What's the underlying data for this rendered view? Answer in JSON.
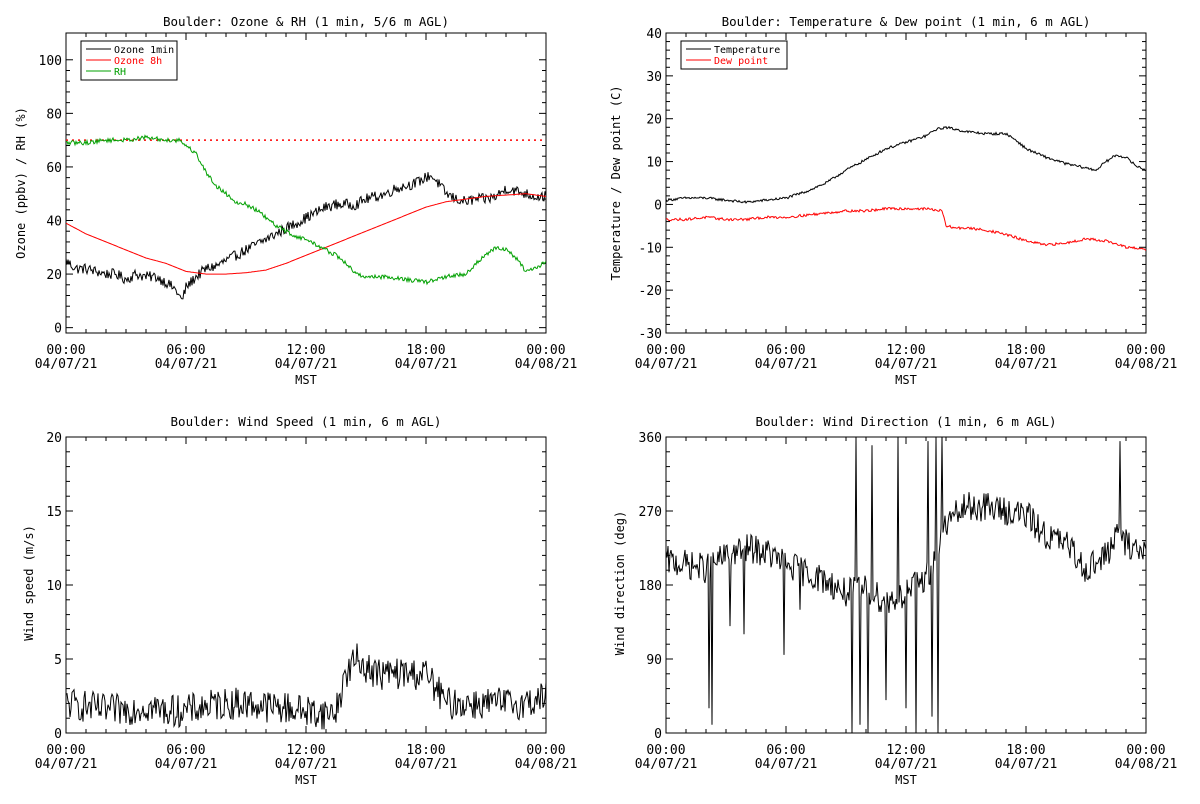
{
  "panels": [
    {
      "title": "Boulder: Ozone & RH (1 min, 5/6 m AGL)",
      "ylabel": "Ozone (ppbv) / RH (%)",
      "xlabel": "MST"
    },
    {
      "title": "Boulder: Temperature & Dew point (1 min, 6 m AGL)",
      "ylabel": "Temperature / Dew point (C)",
      "xlabel": "MST"
    },
    {
      "title": "Boulder: Wind Speed (1 min, 6 m AGL)",
      "ylabel": "Wind speed (m/s)",
      "xlabel": "MST"
    },
    {
      "title": "Boulder: Wind Direction (1 min, 6 m AGL)",
      "ylabel": "Wind direction (deg)",
      "xlabel": "MST"
    }
  ],
  "chart_data": [
    {
      "type": "line",
      "title": "Boulder: Ozone & RH (1 min, 5/6 m AGL)",
      "xlabel": "MST",
      "ylabel": "Ozone (ppbv) / RH (%)",
      "x_tick_labels": [
        [
          "00:00",
          "04/07/21"
        ],
        [
          "06:00",
          "04/07/21"
        ],
        [
          "12:00",
          "04/07/21"
        ],
        [
          "18:00",
          "04/07/21"
        ],
        [
          "00:00",
          "04/08/21"
        ]
      ],
      "xlim": [
        0,
        24
      ],
      "ylim": [
        -2,
        110
      ],
      "yticks": [
        0,
        20,
        40,
        60,
        80,
        100
      ],
      "legend_position": "top-left",
      "reference_line": {
        "y": 70,
        "color": "#ff0000",
        "style": "dotted"
      },
      "series": [
        {
          "name": "Ozone 1min",
          "color": "#000000",
          "x": [
            0,
            0.5,
            1,
            1.5,
            2,
            2.5,
            3,
            3.5,
            4,
            4.5,
            5,
            5.5,
            5.8,
            6,
            6.5,
            7,
            7.5,
            8,
            8.5,
            9,
            9.5,
            10,
            10.5,
            11,
            11.5,
            12,
            12.5,
            13,
            13.5,
            14,
            14.5,
            15,
            15.5,
            16,
            16.5,
            17,
            17.5,
            18,
            18.2,
            18.5,
            19,
            19.5,
            20,
            20.5,
            21,
            21.5,
            22,
            22.5,
            23,
            23.5,
            24
          ],
          "y": [
            25,
            22,
            22,
            21,
            20,
            20,
            18,
            20,
            19,
            19,
            17,
            14,
            10,
            15,
            19,
            22,
            23,
            25,
            27,
            29,
            31,
            33,
            35,
            37,
            39,
            41,
            43,
            45,
            46,
            46,
            46,
            48,
            49,
            50,
            52,
            53,
            54,
            56,
            57,
            55,
            50,
            48,
            47,
            48,
            48,
            49,
            52,
            51,
            50,
            49,
            49
          ],
          "noise": 2
        },
        {
          "name": "Ozone 8h",
          "color": "#ff0000",
          "x": [
            0,
            1,
            2,
            3,
            4,
            5,
            6,
            6.5,
            7,
            8,
            9,
            10,
            11,
            12,
            13,
            14,
            15,
            16,
            17,
            18,
            19,
            20,
            21,
            22,
            23,
            24
          ],
          "y": [
            39,
            35,
            32,
            29,
            26,
            24,
            21,
            20.5,
            20,
            20,
            20.5,
            21.5,
            24,
            27,
            30,
            33,
            36,
            39,
            42,
            45,
            47,
            48,
            49,
            49.5,
            50,
            49
          ],
          "noise": 0
        },
        {
          "name": "RH",
          "color": "#00a000",
          "x": [
            0,
            1,
            2,
            3,
            4,
            5,
            5.7,
            6,
            6.5,
            7,
            7.5,
            8,
            8.5,
            9,
            9.5,
            10,
            10.5,
            11,
            11.5,
            12,
            12.5,
            13,
            13.5,
            14,
            14.5,
            15,
            16,
            17,
            18,
            19,
            20,
            20.5,
            21,
            21.5,
            22,
            22.5,
            23,
            23.5,
            24
          ],
          "y": [
            69,
            69,
            70,
            70,
            71,
            70,
            70,
            68,
            65,
            58,
            53,
            50,
            47,
            46,
            44,
            41,
            38,
            36,
            34,
            33,
            31,
            29,
            27,
            24,
            20,
            19,
            19,
            18,
            17,
            19,
            20,
            24,
            27,
            30,
            29,
            26,
            21,
            22,
            25
          ],
          "noise": 0.8
        }
      ]
    },
    {
      "type": "line",
      "title": "Boulder: Temperature & Dew point (1 min, 6 m AGL)",
      "xlabel": "MST",
      "ylabel": "Temperature / Dew point (C)",
      "x_tick_labels": [
        [
          "00:00",
          "04/07/21"
        ],
        [
          "06:00",
          "04/07/21"
        ],
        [
          "12:00",
          "04/07/21"
        ],
        [
          "18:00",
          "04/07/21"
        ],
        [
          "00:00",
          "04/08/21"
        ]
      ],
      "xlim": [
        0,
        24
      ],
      "ylim": [
        -30,
        40
      ],
      "yticks": [
        -30,
        -20,
        -10,
        0,
        10,
        20,
        30,
        40
      ],
      "legend_position": "top-left",
      "series": [
        {
          "name": "Temperature",
          "color": "#000000",
          "x": [
            0,
            1,
            2,
            3,
            4,
            5,
            6,
            7,
            8,
            9,
            10,
            11,
            12,
            13,
            13.5,
            14,
            14.5,
            15,
            16,
            17,
            17.5,
            18,
            19,
            20,
            21,
            21.5,
            22,
            22.5,
            23,
            23.5,
            24
          ],
          "y": [
            1,
            1.5,
            1.5,
            1,
            0.5,
            1,
            1.5,
            3,
            5,
            8,
            10.5,
            13,
            14.5,
            16,
            17.5,
            18,
            17.5,
            17,
            16.5,
            16.5,
            15,
            13,
            11,
            9.5,
            8.5,
            8,
            10,
            11.5,
            11,
            9,
            8
          ],
          "noise": 0.3
        },
        {
          "name": "Dew point",
          "color": "#ff0000",
          "x": [
            0,
            1,
            2,
            3,
            4,
            5,
            6,
            7,
            8,
            9,
            10,
            11,
            12,
            13,
            13.8,
            14,
            14.5,
            15,
            16,
            17,
            18,
            19,
            20,
            21,
            22,
            23,
            24
          ],
          "y": [
            -3.5,
            -3.5,
            -3,
            -3.5,
            -3.5,
            -3,
            -3,
            -2.5,
            -2,
            -1.5,
            -1.5,
            -1,
            -1,
            -1,
            -1.5,
            -5,
            -5.5,
            -5.5,
            -6,
            -7,
            -8.5,
            -9.5,
            -9,
            -8,
            -8.5,
            -10,
            -10.5
          ],
          "noise": 0.3
        }
      ]
    },
    {
      "type": "line",
      "title": "Boulder: Wind Speed (1 min, 6 m AGL)",
      "xlabel": "MST",
      "ylabel": "Wind speed (m/s)",
      "x_tick_labels": [
        [
          "00:00",
          "04/07/21"
        ],
        [
          "06:00",
          "04/07/21"
        ],
        [
          "12:00",
          "04/07/21"
        ],
        [
          "18:00",
          "04/07/21"
        ],
        [
          "00:00",
          "04/08/21"
        ]
      ],
      "xlim": [
        0,
        24
      ],
      "ylim": [
        0,
        20
      ],
      "yticks": [
        0,
        5,
        10,
        15,
        20
      ],
      "series": [
        {
          "name": "",
          "color": "#000000",
          "x": [
            0,
            1,
            2,
            3,
            4,
            5,
            6,
            7,
            8,
            9,
            10,
            11,
            12,
            13,
            13.5,
            14,
            14.5,
            15,
            15.5,
            16,
            17,
            18,
            18.5,
            19,
            20,
            21,
            22,
            23,
            24
          ],
          "y": [
            2,
            1.8,
            1.5,
            1.6,
            1.8,
            1.5,
            1.5,
            1.8,
            2,
            2,
            1.8,
            1.7,
            1.5,
            1.3,
            1.5,
            4,
            5,
            4.5,
            4,
            4,
            4,
            4,
            3,
            2,
            2,
            2,
            2,
            2,
            2.5
          ],
          "noise": 1.1
        }
      ]
    },
    {
      "type": "line",
      "title": "Boulder: Wind Direction (1 min, 6 m AGL)",
      "xlabel": "MST",
      "ylabel": "Wind direction (deg)",
      "x_tick_labels": [
        [
          "00:00",
          "04/07/21"
        ],
        [
          "06:00",
          "04/07/21"
        ],
        [
          "12:00",
          "04/07/21"
        ],
        [
          "18:00",
          "04/07/21"
        ],
        [
          "00:00",
          "04/08/21"
        ]
      ],
      "xlim": [
        0,
        24
      ],
      "ylim": [
        0,
        360
      ],
      "yticks": [
        0,
        90,
        180,
        270,
        360
      ],
      "series": [
        {
          "name": "",
          "color": "#000000",
          "x": [
            0,
            1,
            2,
            3,
            4,
            5,
            6,
            7,
            8,
            9,
            10,
            11,
            12,
            13,
            13.5,
            14,
            15,
            16,
            17,
            18,
            19,
            20,
            21,
            22,
            22.5,
            23,
            24
          ],
          "y": [
            210,
            205,
            200,
            215,
            225,
            220,
            205,
            195,
            185,
            170,
            175,
            160,
            170,
            190,
            210,
            255,
            275,
            275,
            270,
            265,
            240,
            230,
            200,
            215,
            240,
            230,
            220
          ],
          "noise": 18,
          "spikes": [
            [
              2.15,
              30
            ],
            [
              2.3,
              10
            ],
            [
              3.2,
              130
            ],
            [
              3.9,
              120
            ],
            [
              5.9,
              95
            ],
            [
              6.7,
              150
            ],
            [
              9.3,
              0
            ],
            [
              9.5,
              360
            ],
            [
              9.7,
              10
            ],
            [
              10.1,
              0
            ],
            [
              10.3,
              350
            ],
            [
              11.0,
              40
            ],
            [
              11.6,
              360
            ],
            [
              12.0,
              30
            ],
            [
              12.5,
              0
            ],
            [
              13.1,
              355
            ],
            [
              13.3,
              20
            ],
            [
              13.5,
              360
            ],
            [
              13.6,
              0
            ],
            [
              13.8,
              360
            ],
            [
              22.7,
              355
            ]
          ]
        }
      ]
    }
  ]
}
